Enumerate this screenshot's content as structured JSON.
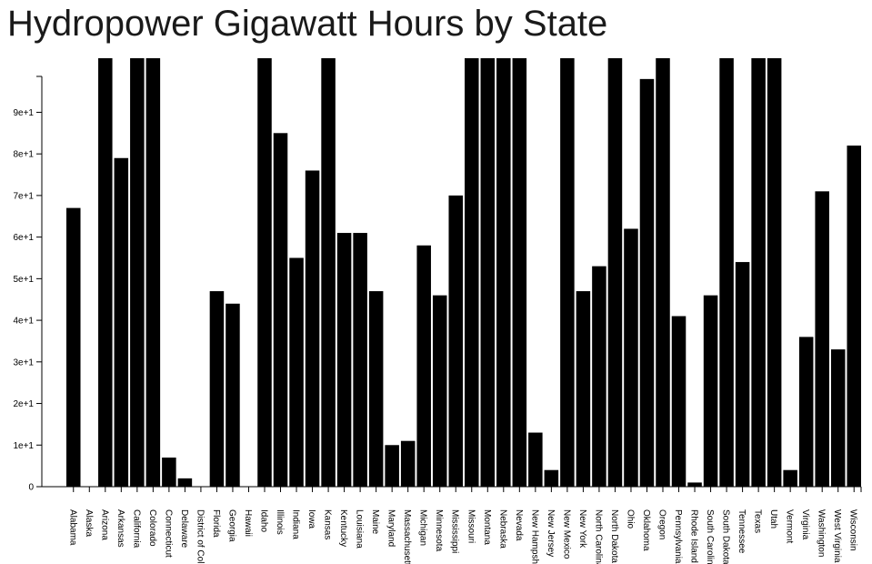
{
  "title": "Hydropower Gigawatt Hours by State",
  "chart_data": {
    "type": "bar",
    "title": "Hydropower Gigawatt Hours by State",
    "xlabel": "",
    "ylabel": "",
    "ylim": [
      0,
      103
    ],
    "ytick_values": [
      0,
      10,
      20,
      30,
      40,
      50,
      60,
      70,
      80,
      90
    ],
    "ytick_labels": [
      "0",
      "1e+1",
      "2e+1",
      "3e+1",
      "4e+1",
      "5e+1",
      "6e+1",
      "7e+1",
      "8e+1",
      "9e+1"
    ],
    "grid": false,
    "bar_color": "#000000",
    "categories": [
      "Alabama",
      "Alaska",
      "Arizona",
      "Arkansas",
      "California",
      "Colorado",
      "Connecticut",
      "Delaware",
      "District of Columb",
      "Florida",
      "Georgia",
      "Hawaii",
      "Idaho",
      "Illinois",
      "Indiana",
      "Iowa",
      "Kansas",
      "Kentucky",
      "Louisiana",
      "Maine",
      "Maryland",
      "Massachusetts",
      "Michigan",
      "Minnesota",
      "Mississippi",
      "Missouri",
      "Montana",
      "Nebraska",
      "Nevada",
      "New Hampshire",
      "New Jersey",
      "New Mexico",
      "New York",
      "North Carolina",
      "North Dakota",
      "Ohio",
      "Oklahoma",
      "Oregon",
      "Pennsylvania",
      "Rhode Island",
      "South Carolina",
      "South Dakota",
      "Tennessee",
      "Texas",
      "Utah",
      "Vermont",
      "Virginia",
      "Washington",
      "West Virginia",
      "Wisconsin"
    ],
    "values": [
      67,
      0,
      103,
      79,
      103,
      103,
      7,
      2,
      0,
      47,
      44,
      0,
      103,
      85,
      55,
      76,
      103,
      61,
      61,
      47,
      10,
      11,
      58,
      46,
      70,
      103,
      103,
      103,
      103,
      13,
      4,
      103,
      47,
      53,
      103,
      62,
      98,
      103,
      41,
      1,
      46,
      103,
      54,
      103,
      103,
      4,
      36,
      71,
      33,
      82
    ]
  }
}
